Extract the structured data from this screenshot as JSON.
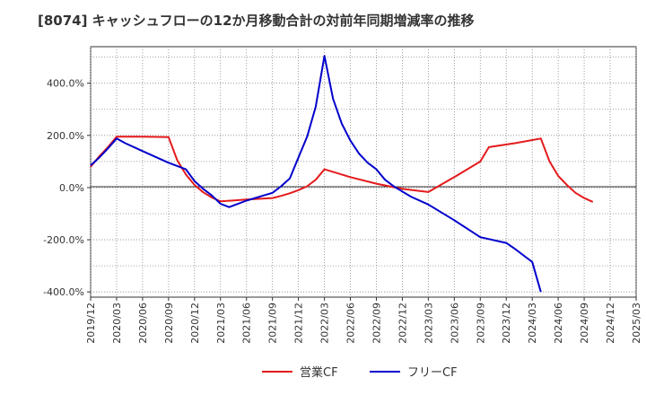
{
  "chart_data": {
    "type": "line",
    "title": "[8074]  キャッシュフローの12か月移動合計の対前年同期増減率の推移",
    "xlabel": "",
    "ylabel": "",
    "x_ticks": [
      "2019/12",
      "2020/03",
      "2020/06",
      "2020/09",
      "2020/12",
      "2021/03",
      "2021/06",
      "2021/09",
      "2021/12",
      "2022/03",
      "2022/06",
      "2022/09",
      "2022/12",
      "2023/03",
      "2023/06",
      "2023/09",
      "2023/12",
      "2024/03",
      "2024/06",
      "2024/09",
      "2024/12",
      "2025/03"
    ],
    "y_ticks": [
      400,
      200,
      0,
      -200,
      -400
    ],
    "y_tick_labels": [
      "400.0%",
      "200.0%",
      "0.0%",
      "-200.0%",
      "-400.0%"
    ],
    "ylim": [
      -420,
      540
    ],
    "grid": true,
    "grid_style": "dotted",
    "legend_position": "bottom-center",
    "series": [
      {
        "name": "営業CF",
        "color": "#e41a1c",
        "points": [
          [
            "2019/12",
            80
          ],
          [
            "2020/01",
            120
          ],
          [
            "2020/02",
            155
          ],
          [
            "2020/03",
            195
          ],
          [
            "2020/06",
            195
          ],
          [
            "2020/09",
            193
          ],
          [
            "2020/10",
            105
          ],
          [
            "2020/11",
            50
          ],
          [
            "2020/12",
            10
          ],
          [
            "2021/01",
            -18
          ],
          [
            "2021/02",
            -38
          ],
          [
            "2021/03",
            -53
          ],
          [
            "2021/06",
            -46
          ],
          [
            "2021/09",
            -40
          ],
          [
            "2021/10",
            -32
          ],
          [
            "2021/11",
            -22
          ],
          [
            "2021/12",
            -10
          ],
          [
            "2022/01",
            5
          ],
          [
            "2022/02",
            30
          ],
          [
            "2022/03",
            70
          ],
          [
            "2022/06",
            40
          ],
          [
            "2022/09",
            15
          ],
          [
            "2022/12",
            -5
          ],
          [
            "2023/03",
            -17
          ],
          [
            "2023/06",
            40
          ],
          [
            "2023/09",
            100
          ],
          [
            "2023/10",
            155
          ],
          [
            "2024/01",
            170
          ],
          [
            "2024/04",
            188
          ],
          [
            "2024/05",
            100
          ],
          [
            "2024/06",
            45
          ],
          [
            "2024/07",
            10
          ],
          [
            "2024/08",
            -20
          ],
          [
            "2024/09",
            -40
          ],
          [
            "2024/10",
            -55
          ]
        ]
      },
      {
        "name": "フリーCF",
        "color": "#0000cc",
        "points": [
          [
            "2019/12",
            85
          ],
          [
            "2020/01",
            115
          ],
          [
            "2020/02",
            150
          ],
          [
            "2020/03",
            188
          ],
          [
            "2020/04",
            170
          ],
          [
            "2020/06",
            140
          ],
          [
            "2020/09",
            95
          ],
          [
            "2020/11",
            70
          ],
          [
            "2020/12",
            25
          ],
          [
            "2021/01",
            -5
          ],
          [
            "2021/02",
            -30
          ],
          [
            "2021/03",
            -62
          ],
          [
            "2021/04",
            -75
          ],
          [
            "2021/06",
            -50
          ],
          [
            "2021/08",
            -30
          ],
          [
            "2021/09",
            -20
          ],
          [
            "2021/10",
            5
          ],
          [
            "2021/11",
            35
          ],
          [
            "2021/12",
            115
          ],
          [
            "2022/01",
            195
          ],
          [
            "2022/02",
            310
          ],
          [
            "2022/03",
            505
          ],
          [
            "2022/04",
            340
          ],
          [
            "2022/05",
            245
          ],
          [
            "2022/06",
            180
          ],
          [
            "2022/07",
            130
          ],
          [
            "2022/08",
            95
          ],
          [
            "2022/09",
            70
          ],
          [
            "2022/10",
            30
          ],
          [
            "2022/11",
            5
          ],
          [
            "2022/12",
            -15
          ],
          [
            "2023/01",
            -35
          ],
          [
            "2023/03",
            -65
          ],
          [
            "2023/06",
            -125
          ],
          [
            "2023/09",
            -190
          ],
          [
            "2023/12",
            -212
          ],
          [
            "2024/01",
            -235
          ],
          [
            "2024/02",
            -260
          ],
          [
            "2024/03",
            -285
          ],
          [
            "2024/04",
            -400
          ]
        ]
      }
    ]
  }
}
